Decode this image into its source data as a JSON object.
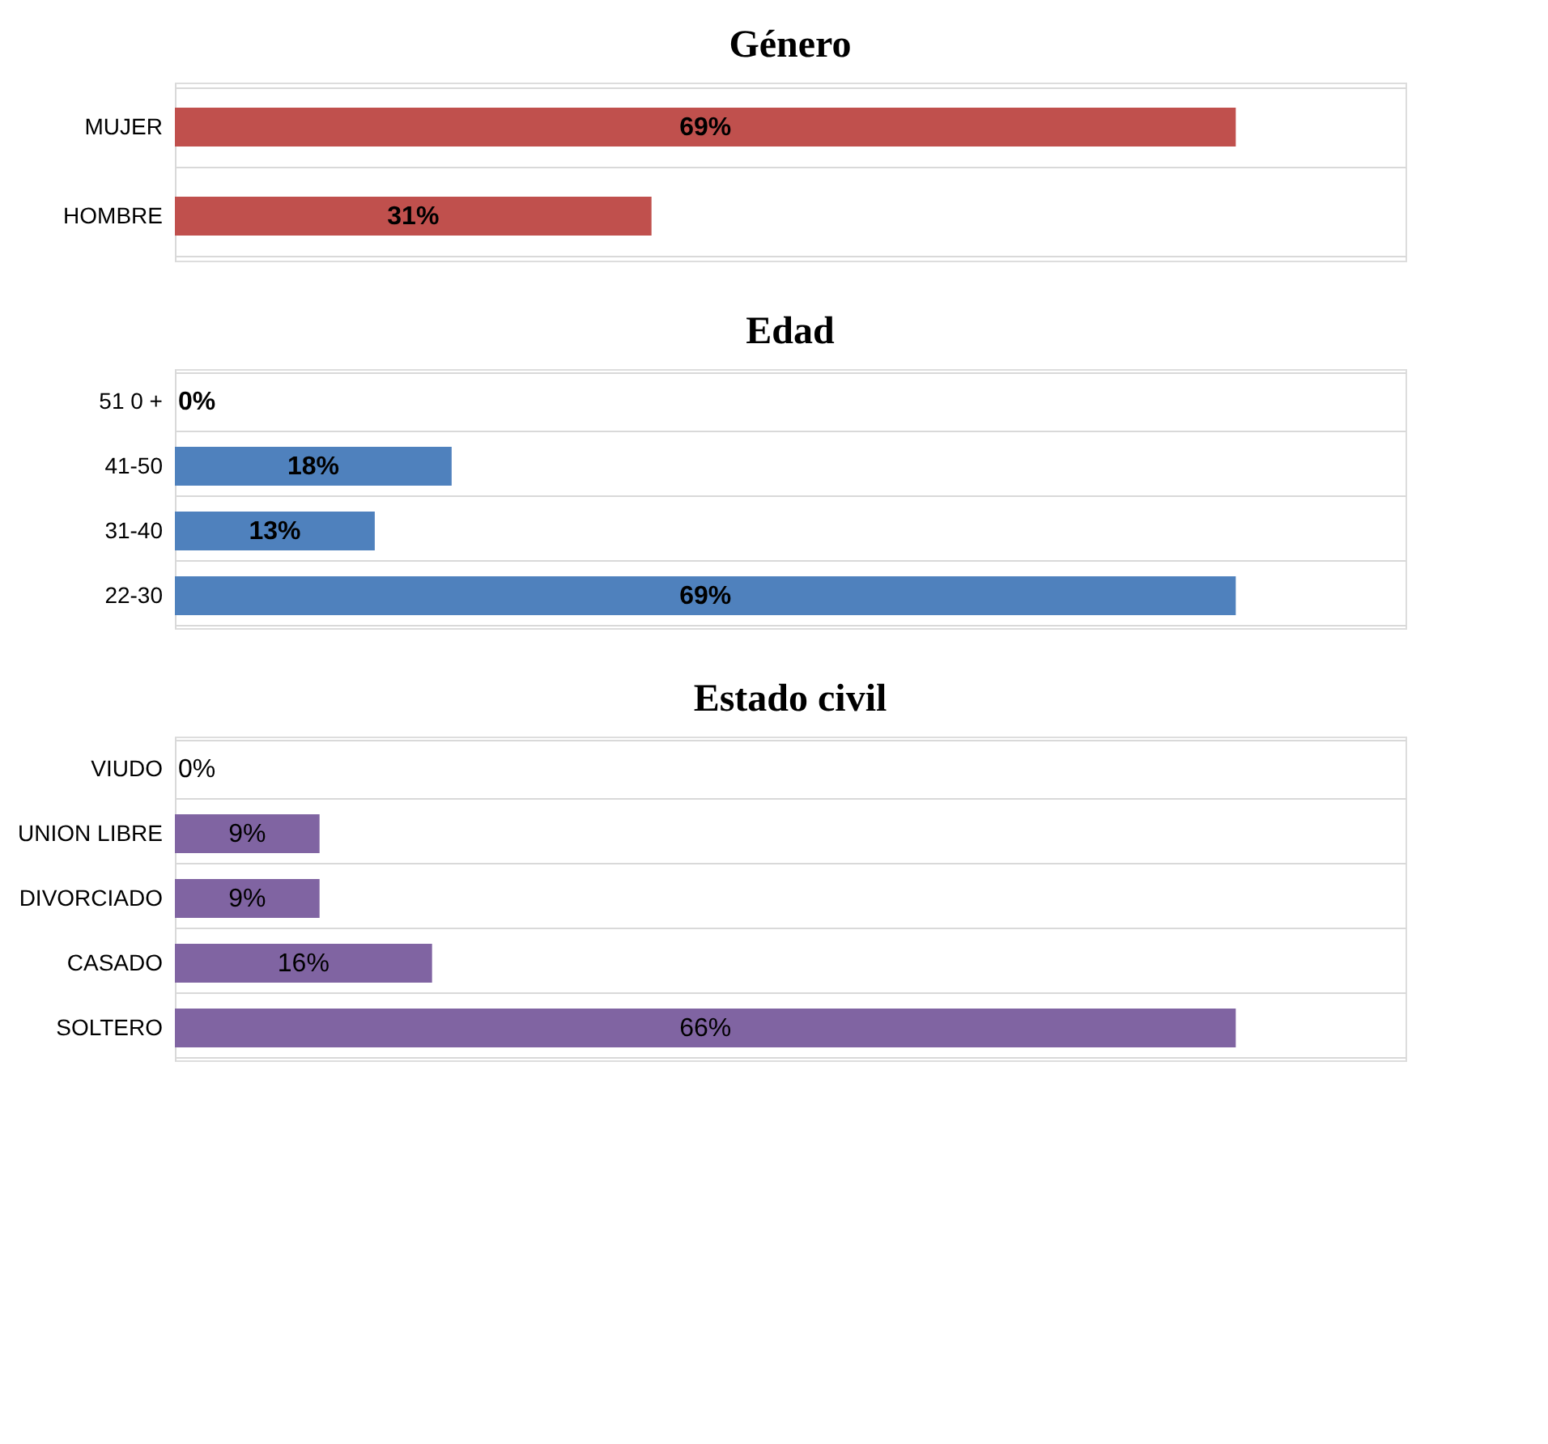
{
  "chart_data": [
    {
      "type": "bar",
      "orientation": "horizontal",
      "title": "Género",
      "categories": [
        "MUJER",
        "HOMBRE"
      ],
      "values": [
        69,
        31
      ],
      "color": "#c0504d",
      "data_labels": true,
      "value_labels": [
        "69%",
        "31%"
      ],
      "grid": "y"
    },
    {
      "type": "bar",
      "orientation": "horizontal",
      "title": "Edad",
      "categories": [
        "51 0 +",
        "41-50",
        "31-40",
        "22-30"
      ],
      "values": [
        0,
        18,
        13,
        69
      ],
      "color": "#4f81bd",
      "data_labels": true,
      "value_labels": [
        "0%",
        "18%",
        "13%",
        "69%"
      ],
      "grid": "y"
    },
    {
      "type": "bar",
      "orientation": "horizontal",
      "title": "Estado civil",
      "categories": [
        "VIUDO",
        "UNION LIBRE",
        "DIVORCIADO",
        "CASADO",
        "SOLTERO"
      ],
      "values": [
        0,
        9,
        9,
        16,
        66
      ],
      "color": "#8064a2",
      "data_labels": true,
      "value_labels": [
        "0%",
        "9%",
        "9%",
        "16%",
        "66%"
      ],
      "grid": "y"
    }
  ]
}
